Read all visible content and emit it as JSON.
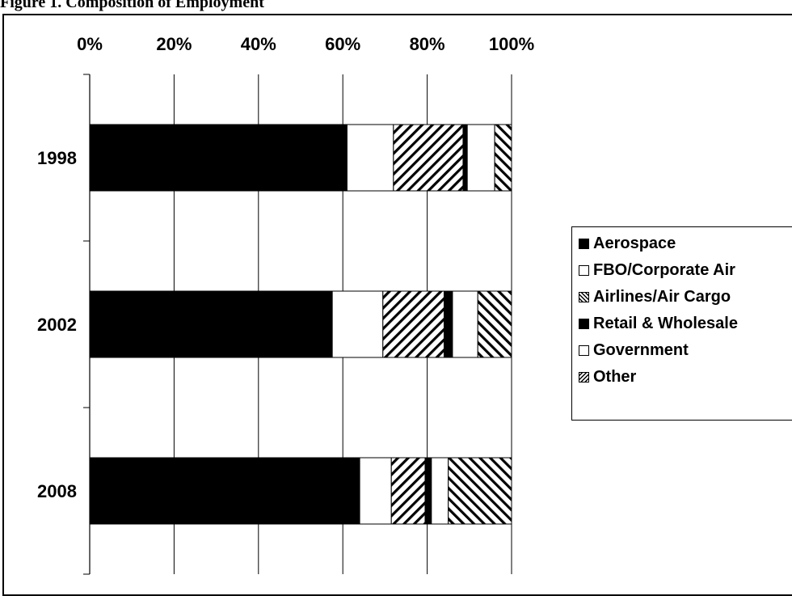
{
  "caption": "Figure 1. Composition of Employment",
  "chart_data": {
    "type": "bar",
    "orientation": "horizontal",
    "stacked": "percent",
    "title": "",
    "xlabel": "",
    "ylabel": "",
    "xlim": [
      0,
      100
    ],
    "x_ticks": [
      "0%",
      "20%",
      "40%",
      "60%",
      "80%",
      "100%"
    ],
    "x_tick_position": "top",
    "grid": true,
    "legend_position": "right",
    "categories": [
      "1998",
      "2002",
      "2008"
    ],
    "series": [
      {
        "name": "Aerospace",
        "values": [
          61,
          57.5,
          64
        ],
        "fill": "solid"
      },
      {
        "name": "FBO/Corporate Air",
        "values": [
          11,
          12,
          7.5
        ],
        "fill": "empty"
      },
      {
        "name": "Airlines/Air Cargo",
        "values": [
          16.5,
          14.5,
          8
        ],
        "fill": "hatch-back"
      },
      {
        "name": "Retail & Wholesale",
        "values": [
          1,
          2,
          1.5
        ],
        "fill": "solid"
      },
      {
        "name": "Government",
        "values": [
          6.5,
          6,
          4
        ],
        "fill": "empty"
      },
      {
        "name": "Other",
        "values": [
          4,
          8,
          15
        ],
        "fill": "hatch-forward"
      }
    ]
  },
  "legend": {
    "items": [
      {
        "label": "Aerospace",
        "fill": "solid"
      },
      {
        "label": "FBO/Corporate Air",
        "fill": "empty"
      },
      {
        "label": "Airlines/Air Cargo",
        "fill": "hatch-back"
      },
      {
        "label": "Retail & Wholesale",
        "fill": "solid"
      },
      {
        "label": "Government",
        "fill": "empty"
      },
      {
        "label": "Other",
        "fill": "hatch-forward"
      }
    ]
  },
  "colors": {
    "ink": "#000000",
    "paper": "#ffffff"
  }
}
